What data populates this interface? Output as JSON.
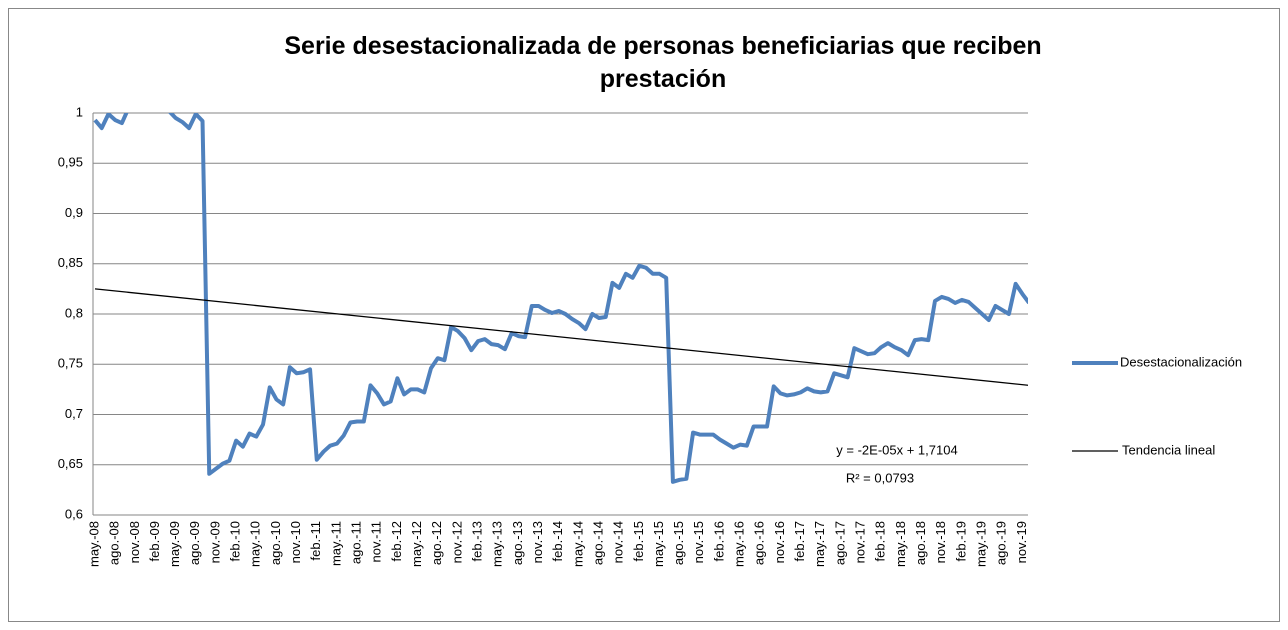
{
  "chart_data": {
    "type": "line",
    "title": "Serie desestacionalizada de personas beneficiarias que reciben prestación",
    "categories": [
      "may.-08",
      null,
      null,
      "ago.-08",
      null,
      null,
      "nov.-08",
      null,
      null,
      "feb.-09",
      null,
      null,
      "may.-09",
      null,
      null,
      "ago.-09",
      null,
      null,
      "nov.-09",
      null,
      null,
      "feb.-10",
      null,
      null,
      "may.-10",
      null,
      null,
      "ago.-10",
      null,
      null,
      "nov.-10",
      null,
      null,
      "feb.-11",
      null,
      null,
      "may.-11",
      null,
      null,
      "ago.-11",
      null,
      null,
      "nov.-11",
      null,
      null,
      "feb.-12",
      null,
      null,
      "may.-12",
      null,
      null,
      "ago.-12",
      null,
      null,
      "nov.-12",
      null,
      null,
      "feb.-13",
      null,
      null,
      "may.-13",
      null,
      null,
      "ago.-13",
      null,
      null,
      "nov.-13",
      null,
      null,
      "feb.-14",
      null,
      null,
      "may.-14",
      null,
      null,
      "ago.-14",
      null,
      null,
      "nov.-14",
      null,
      null,
      "feb.-15",
      null,
      null,
      "may.-15",
      null,
      null,
      "ago.-15",
      null,
      null,
      "nov.-15",
      null,
      null,
      "feb.-16",
      null,
      null,
      "may.-16",
      null,
      null,
      "ago.-16",
      null,
      null,
      "nov.-16",
      null,
      null,
      "feb.-17",
      null,
      null,
      "may.-17",
      null,
      null,
      "ago.-17",
      null,
      null,
      "nov.-17",
      null,
      null,
      "feb.-18",
      null,
      null,
      "may.-18",
      null,
      null,
      "ago.-18",
      null,
      null,
      "nov.-18",
      null,
      null,
      "feb.-19",
      null,
      null,
      "may.-19",
      null,
      null,
      "ago.-19",
      null,
      null,
      "nov.-19",
      null
    ],
    "series": [
      {
        "name": "Desestacionalización",
        "color": "#4f81bd",
        "values": [
          0.993,
          0.985,
          0.999,
          0.993,
          0.99,
          1.005,
          1.005,
          1.008,
          1.006,
          1.004,
          1.003,
          1.002,
          0.995,
          0.991,
          0.985,
          0.999,
          0.992,
          0.641,
          0.646,
          0.651,
          0.654,
          0.674,
          0.668,
          0.681,
          0.678,
          0.69,
          0.727,
          0.715,
          0.71,
          0.747,
          0.741,
          0.742,
          0.745,
          0.655,
          0.663,
          0.669,
          0.671,
          0.679,
          0.692,
          0.693,
          0.693,
          0.729,
          0.721,
          0.71,
          0.713,
          0.736,
          0.72,
          0.725,
          0.725,
          0.722,
          0.746,
          0.756,
          0.754,
          0.787,
          0.783,
          0.776,
          0.764,
          0.773,
          0.775,
          0.77,
          0.769,
          0.765,
          0.781,
          0.778,
          0.777,
          0.808,
          0.808,
          0.804,
          0.801,
          0.803,
          0.8,
          0.795,
          0.791,
          0.785,
          0.8,
          0.796,
          0.797,
          0.831,
          0.826,
          0.84,
          0.836,
          0.848,
          0.846,
          0.84,
          0.84,
          0.836,
          0.633,
          0.635,
          0.636,
          0.682,
          0.68,
          0.68,
          0.68,
          0.675,
          0.671,
          0.667,
          0.67,
          0.669,
          0.688,
          0.688,
          0.688,
          0.728,
          0.721,
          0.719,
          0.72,
          0.722,
          0.726,
          0.723,
          0.722,
          0.723,
          0.741,
          0.739,
          0.737,
          0.766,
          0.763,
          0.76,
          0.761,
          0.767,
          0.771,
          0.767,
          0.764,
          0.759,
          0.774,
          0.775,
          0.774,
          0.813,
          0.817,
          0.815,
          0.811,
          0.814,
          0.812,
          0.806,
          0.8,
          0.794,
          0.808,
          0.804,
          0.8,
          0.83,
          0.82,
          0.811
        ]
      }
    ],
    "trendline": {
      "name": "Tendencia lineal",
      "color": "#000000",
      "start": 0.825,
      "end": 0.729
    },
    "annotations": [
      "y = -2E-05x + 1,7104",
      "R² = 0,0793"
    ],
    "ylim": [
      0.6,
      1
    ],
    "yticks": [
      {
        "value": 0.6,
        "label": "0,6"
      },
      {
        "value": 0.65,
        "label": "0,65"
      },
      {
        "value": 0.7,
        "label": "0,7"
      },
      {
        "value": 0.75,
        "label": "0,75"
      },
      {
        "value": 0.8,
        "label": "0,8"
      },
      {
        "value": 0.85,
        "label": "0,85"
      },
      {
        "value": 0.9,
        "label": "0,9"
      },
      {
        "value": 0.95,
        "label": "0,95"
      },
      1
    ],
    "grid": true,
    "legend": "right"
  }
}
